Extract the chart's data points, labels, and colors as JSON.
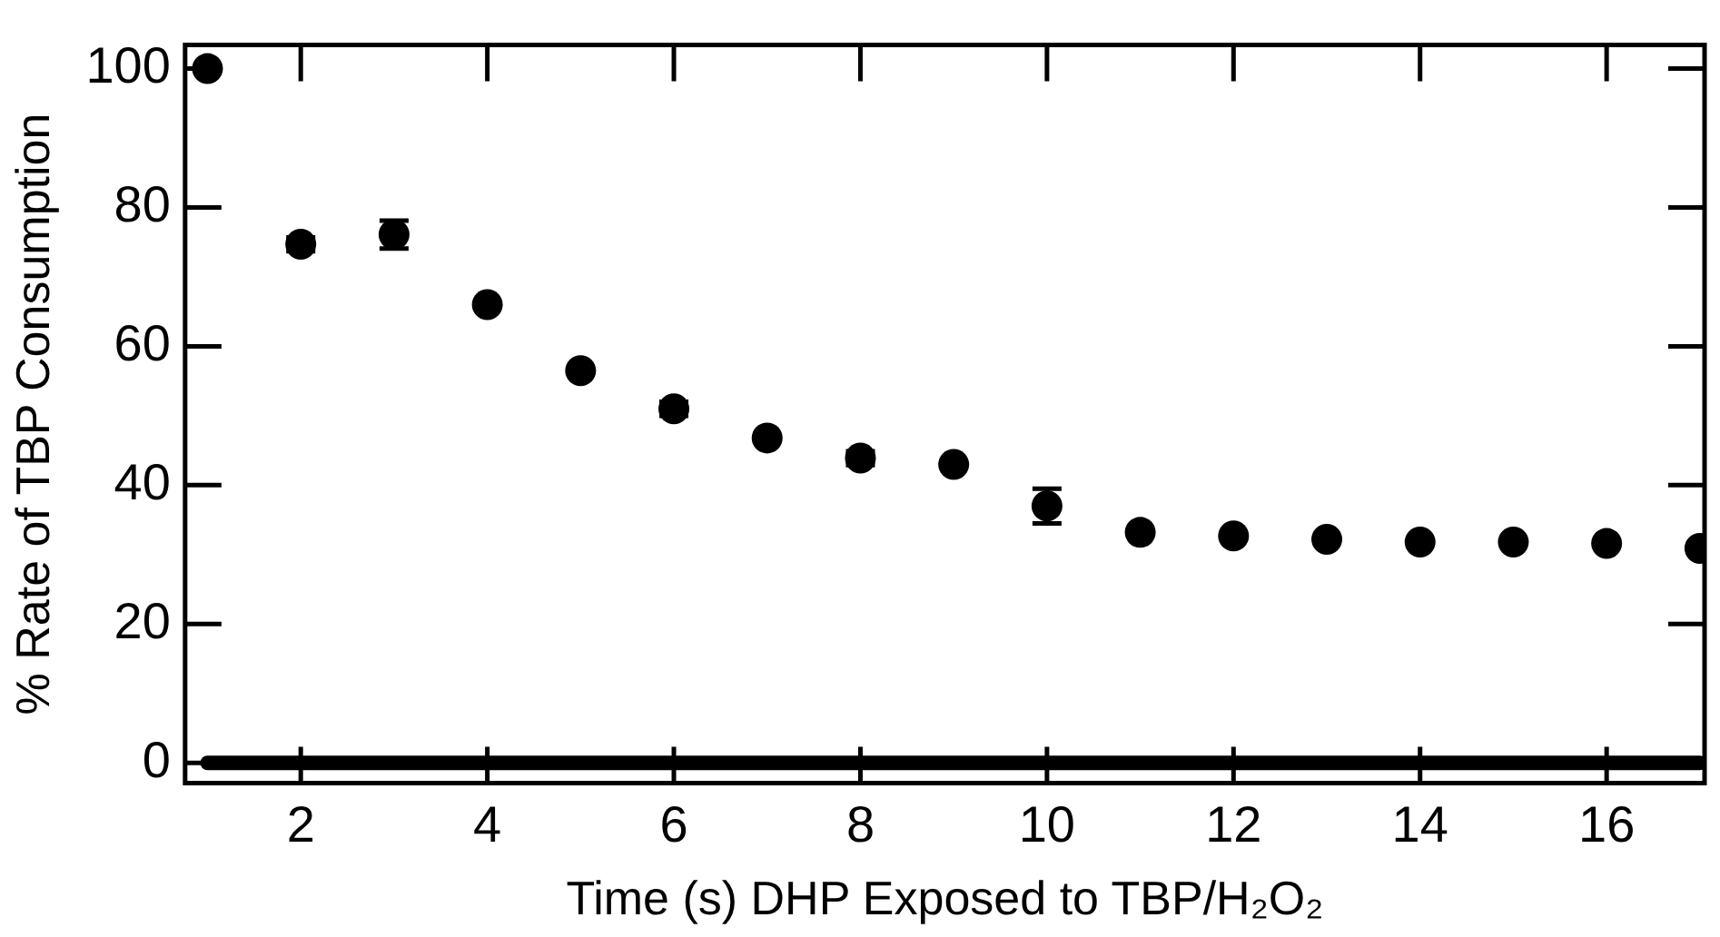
{
  "chart_data": {
    "type": "scatter",
    "xlabel": "Time (s) DHP Exposed to TBP/H₂O₂",
    "ylabel": "% Rate of TBP Consumption",
    "marker": "circle",
    "grid": false,
    "xlim": [
      0.76,
      17.05
    ],
    "xticks": [
      2,
      4,
      6,
      8,
      10,
      12,
      14,
      16
    ],
    "ylim": [
      -2.9,
      103.4
    ],
    "yticks": [
      0,
      20,
      40,
      60,
      80,
      100
    ],
    "series": [
      {
        "color": "#000000",
        "x": [
          1,
          2,
          3,
          4,
          5,
          6,
          7,
          8,
          9,
          10,
          11,
          12,
          13,
          14,
          15,
          16,
          17
        ],
        "values": [
          100,
          74.7,
          76.1,
          66,
          56.5,
          51,
          46.8,
          43.9,
          43,
          37,
          33.2,
          32.7,
          32.2,
          31.8,
          31.8,
          31.6,
          30.9
        ],
        "errors": [
          null,
          1,
          2,
          null,
          null,
          1,
          null,
          1,
          null,
          2.5,
          null,
          null,
          null,
          null,
          null,
          null,
          null
        ]
      },
      {
        "type": "line",
        "color": "#000000",
        "marker": "none",
        "x": [
          1,
          17
        ],
        "values": [
          0,
          0
        ]
      }
    ]
  }
}
